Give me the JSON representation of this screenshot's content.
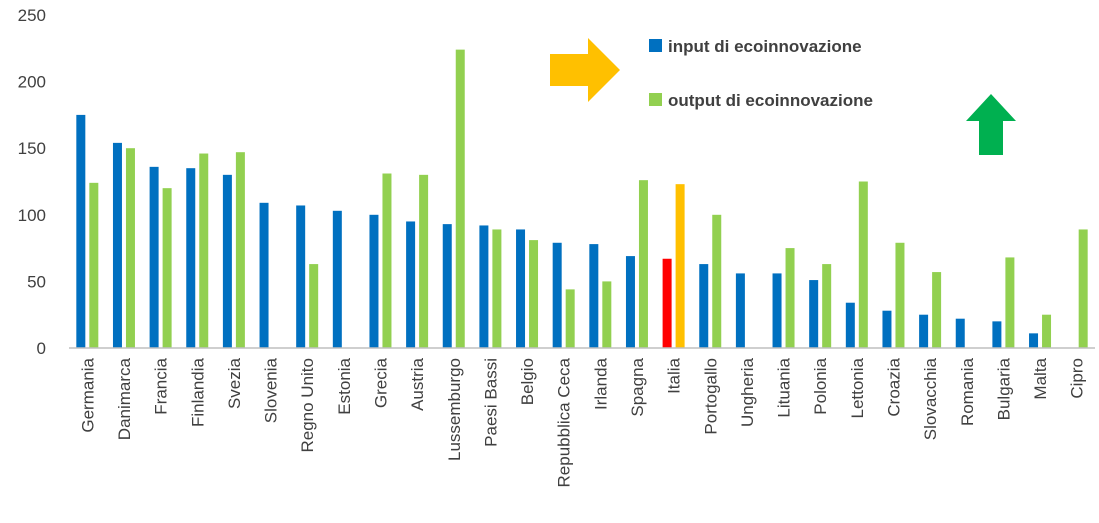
{
  "chart_data": {
    "type": "bar",
    "categories": [
      "Germania",
      "Danimarca",
      "Francia",
      "Finlandia",
      "Svezia",
      "Slovenia",
      "Regno Unito",
      "Estonia",
      "Grecia",
      "Austria",
      "Lussemburgo",
      "Paesi Bassi",
      "Belgio",
      "Repubblica Ceca",
      "Irlanda",
      "Spagna",
      "Italia",
      "Portogallo",
      "Ungheria",
      "Lituania",
      "Polonia",
      "Lettonia",
      "Croazia",
      "Slovacchia",
      "Romania",
      "Bulgaria",
      "Malta",
      "Cipro"
    ],
    "series": [
      {
        "name": "input di ecoinnovazione",
        "color": "#0070C0",
        "highlight_color": "#FF0000",
        "values": [
          175,
          154,
          136,
          135,
          130,
          109,
          107,
          103,
          100,
          95,
          93,
          92,
          89,
          79,
          78,
          69,
          67,
          63,
          56,
          56,
          51,
          34,
          28,
          25,
          22,
          20,
          11,
          0
        ]
      },
      {
        "name": "output di ecoinnovazione",
        "color": "#92D050",
        "highlight_color": "#FFC000",
        "values": [
          124,
          150,
          120,
          146,
          147,
          0,
          63,
          0,
          131,
          130,
          224,
          89,
          81,
          44,
          50,
          126,
          123,
          100,
          0,
          75,
          63,
          125,
          79,
          57,
          0,
          68,
          25,
          89
        ]
      }
    ],
    "highlight_category": "Italia",
    "yticks": [
      "0",
      "50",
      "100",
      "150",
      "200",
      "250"
    ],
    "ylim": [
      0,
      250
    ],
    "grid": false,
    "legend_position": "top-right",
    "annotations": {
      "right_arrow_color": "#FFC000",
      "up_arrow_color": "#00B050"
    }
  }
}
